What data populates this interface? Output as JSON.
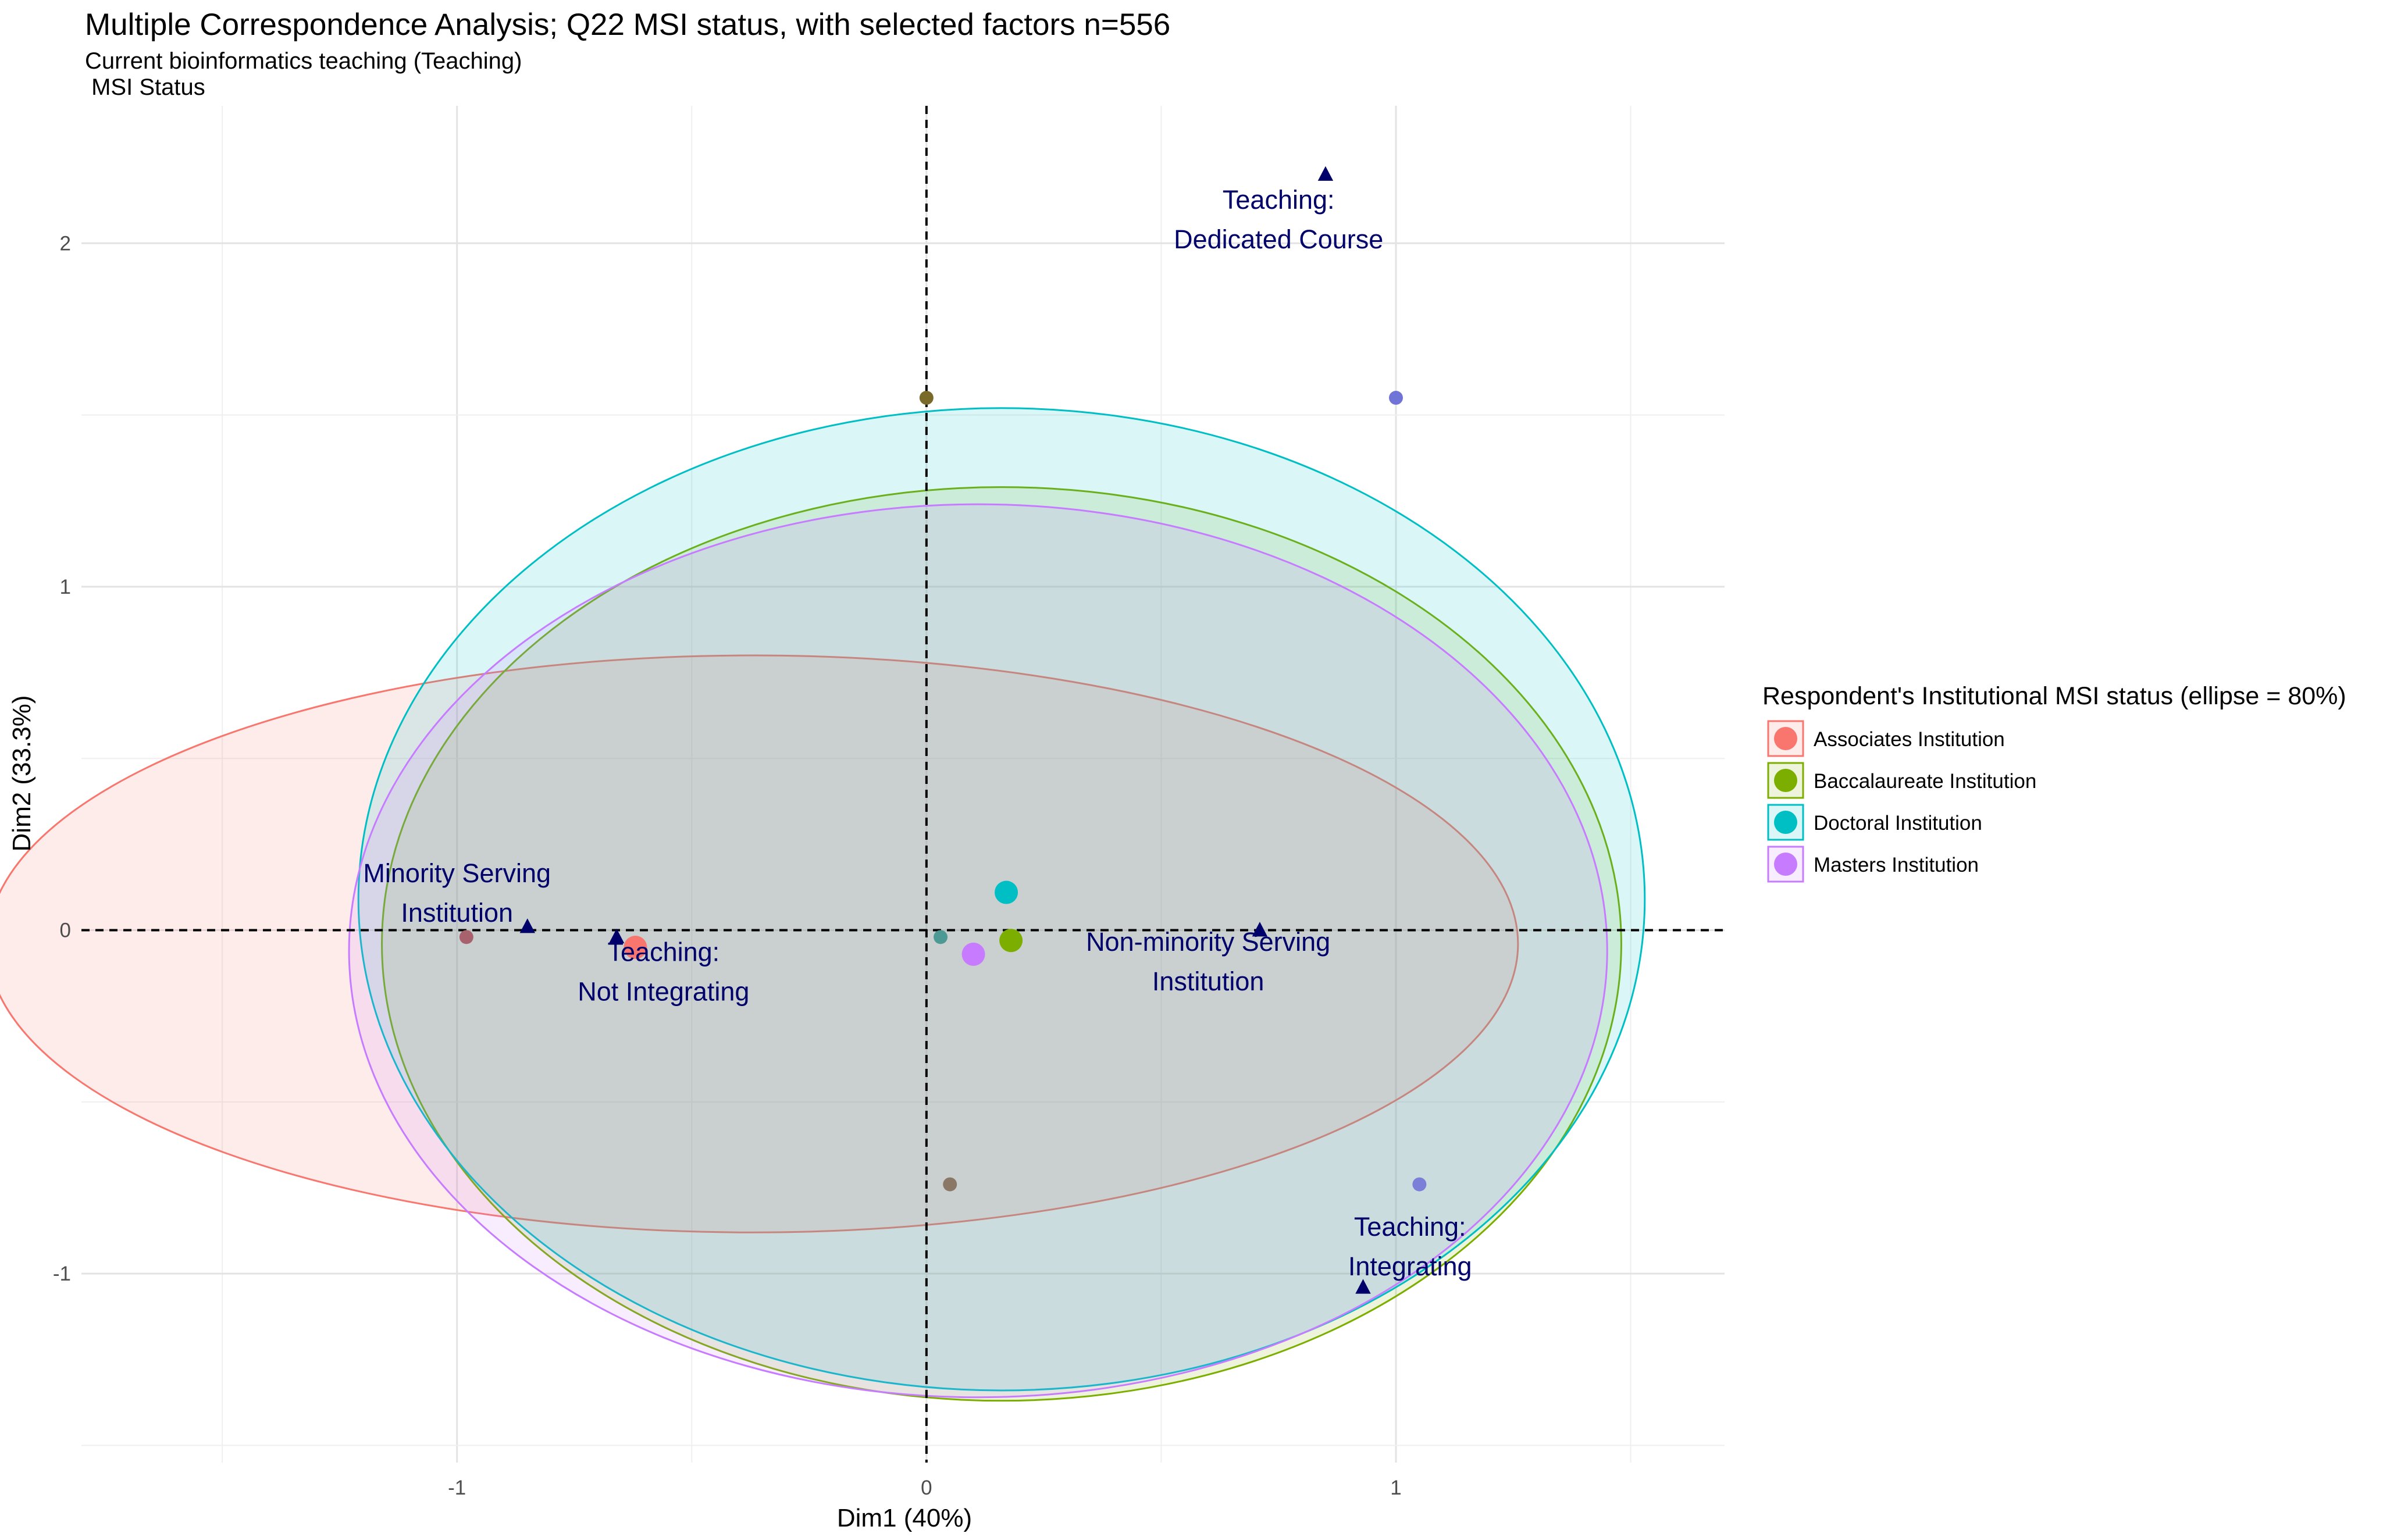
{
  "chart_data": {
    "type": "scatter",
    "title": "Multiple Correspondence Analysis; Q22 MSI status, with selected factors n=556",
    "subtitle_lines": [
      "Current bioinformatics teaching (Teaching)",
      " MSI Status"
    ],
    "xlabel": "Dim1 (40%)",
    "ylabel": "Dim2 (33.3%)",
    "xlim": [
      -1.8,
      1.7
    ],
    "ylim": [
      -1.55,
      2.4
    ],
    "x_ticks": [
      -1,
      0,
      1
    ],
    "x_tick_labels": [
      "-1",
      "0",
      "1"
    ],
    "y_ticks": [
      -1,
      0,
      1,
      2
    ],
    "y_tick_labels": [
      "-1",
      "0",
      "1",
      "2"
    ],
    "grid": true,
    "legend": {
      "title": "Respondent's Institutional MSI status (ellipse = 80%)",
      "placement": "right",
      "entries": [
        "Associates Institution",
        "Baccalaureate Institution",
        "Doctoral Institution",
        "Masters Institution"
      ]
    },
    "series": [
      {
        "name": "Associates Institution",
        "color": "#F8766D",
        "centroid": [
          -0.62,
          -0.05
        ],
        "ellipse": {
          "cx": -0.37,
          "cy": -0.04,
          "rx": 1.63,
          "ry": 0.84,
          "angle_deg": 0
        }
      },
      {
        "name": "Baccalaureate Institution",
        "color": "#7CAE00",
        "centroid": [
          0.18,
          -0.03
        ],
        "ellipse": {
          "cx": 0.16,
          "cy": -0.04,
          "rx": 1.32,
          "ry": 1.33,
          "angle_deg": 0
        }
      },
      {
        "name": "Doctoral Institution",
        "color": "#00BFC4",
        "centroid": [
          0.17,
          0.11
        ],
        "ellipse": {
          "cx": 0.16,
          "cy": 0.09,
          "rx": 1.37,
          "ry": 1.43,
          "angle_deg": 0
        }
      },
      {
        "name": "Masters Institution",
        "color": "#C77CFF",
        "centroid": [
          0.1,
          -0.07
        ],
        "ellipse": {
          "cx": 0.11,
          "cy": -0.06,
          "rx": 1.34,
          "ry": 1.3,
          "angle_deg": 0
        }
      }
    ],
    "individuals": [
      {
        "x": 0.0,
        "y": 1.55,
        "color": "#7a6a2a"
      },
      {
        "x": 1.0,
        "y": 1.55,
        "color": "#6f74d6"
      },
      {
        "x": -0.98,
        "y": -0.02,
        "color": "#a8626e"
      },
      {
        "x": 0.03,
        "y": -0.02,
        "color": "#4d9a94"
      },
      {
        "x": 0.05,
        "y": -0.74,
        "color": "#8a7766"
      },
      {
        "x": 1.05,
        "y": -0.74,
        "color": "#7b7fd8"
      }
    ],
    "variables": [
      {
        "x": 0.85,
        "y": 2.2,
        "label_lines": [
          "Teaching:",
          "Dedicated Course"
        ],
        "label_x": 0.75,
        "label_y": 2.1
      },
      {
        "x": -0.85,
        "y": 0.01,
        "label_lines": [
          "Minority Serving",
          "Institution"
        ],
        "label_x": -1.0,
        "label_y": 0.14
      },
      {
        "x": -0.66,
        "y": -0.02,
        "label_lines": [
          "Teaching:",
          "Not Integrating"
        ],
        "label_x": -0.56,
        "label_y": -0.09
      },
      {
        "x": 0.71,
        "y": 0.0,
        "label_lines": [
          "Non-minority Serving",
          "Institution"
        ],
        "label_x": 0.6,
        "label_y": -0.06
      },
      {
        "x": 0.93,
        "y": -1.04,
        "label_lines": [
          "Teaching:",
          "Integrating"
        ],
        "label_x": 1.03,
        "label_y": -0.89
      }
    ]
  }
}
